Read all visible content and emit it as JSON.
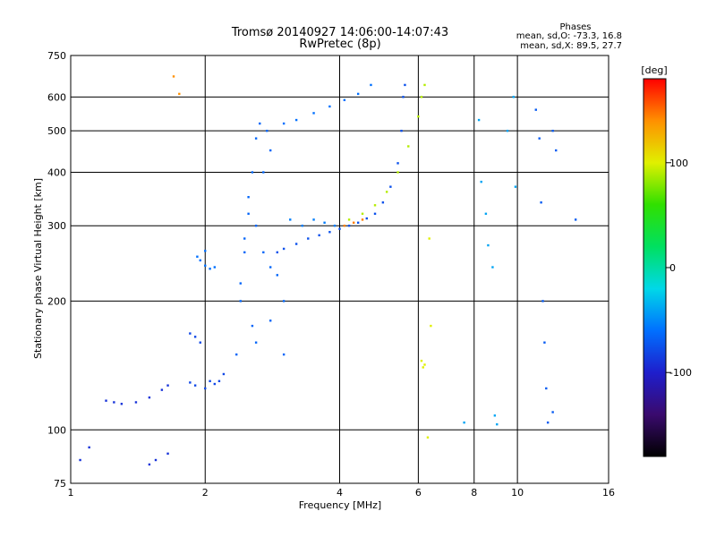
{
  "chart_data": {
    "type": "scatter",
    "title": "Tromsø 20140927 14:06:00-14:07:43",
    "subtitle": "RwPretec (8p)",
    "phases_box": {
      "heading": "Phases",
      "line1": "mean, sd,O: -73.3, 16.8",
      "line2": "mean, sd,X:  89.5, 27.7"
    },
    "xlabel": "Frequency [MHz]",
    "ylabel": "Stationary phase Virtual Height [km]",
    "x_scale": "log",
    "y_scale": "log",
    "xlim": [
      1,
      16
    ],
    "ylim": [
      75,
      750
    ],
    "x_ticks": [
      1,
      2,
      4,
      6,
      8,
      10,
      16
    ],
    "x_tick_labels": [
      "1",
      "2",
      "4",
      "6",
      "8",
      "10",
      "16"
    ],
    "y_ticks": [
      75,
      100,
      200,
      300,
      400,
      500,
      600,
      750
    ],
    "y_tick_labels": [
      "75",
      "100",
      "200",
      "300",
      "400",
      "500",
      "600",
      "750"
    ],
    "grid": true,
    "colorbar": {
      "label": "[deg]",
      "range": [
        -180,
        180
      ],
      "ticks": [
        100,
        0,
        -100
      ],
      "tick_labels": [
        "100",
        "0",
        "-100"
      ],
      "colors": [
        "#000000",
        "#3a0a6e",
        "#1e1ecc",
        "#0070ff",
        "#00d8e8",
        "#00e060",
        "#30e000",
        "#e0f000",
        "#ff9000",
        "#ff0000"
      ]
    },
    "series": [
      {
        "values": [
          [
            1.2,
            117
          ],
          [
            1.25,
            116
          ],
          [
            1.3,
            115
          ],
          [
            1.4,
            116
          ],
          [
            1.5,
            119
          ],
          [
            1.6,
            124
          ],
          [
            1.65,
            127
          ],
          [
            1.5,
            83
          ],
          [
            1.55,
            85
          ],
          [
            1.65,
            88
          ],
          [
            1.05,
            85
          ],
          [
            1.1,
            91
          ]
        ],
        "phase": -90
      },
      {
        "values": [
          [
            1.85,
            168
          ],
          [
            1.9,
            165
          ],
          [
            1.95,
            160
          ],
          [
            2.0,
            125
          ],
          [
            2.05,
            130
          ],
          [
            2.1,
            128
          ],
          [
            2.15,
            130
          ],
          [
            2.2,
            135
          ],
          [
            1.85,
            129
          ],
          [
            1.9,
            127
          ]
        ],
        "phase": -80
      },
      {
        "values": [
          [
            1.92,
            254
          ],
          [
            1.95,
            249
          ],
          [
            2.0,
            242
          ],
          [
            2.05,
            238
          ],
          [
            2.1,
            240
          ],
          [
            2.0,
            262
          ]
        ],
        "phase": -60
      },
      {
        "values": [
          [
            2.35,
            150
          ],
          [
            2.4,
            200
          ],
          [
            2.45,
            260
          ],
          [
            2.5,
            320
          ],
          [
            2.55,
            400
          ],
          [
            2.6,
            480
          ],
          [
            2.65,
            520
          ],
          [
            2.5,
            350
          ],
          [
            2.45,
            280
          ],
          [
            2.4,
            220
          ],
          [
            2.6,
            300
          ],
          [
            2.7,
            260
          ],
          [
            2.8,
            240
          ],
          [
            2.9,
            230
          ],
          [
            3.0,
            200
          ],
          [
            2.55,
            175
          ],
          [
            2.6,
            160
          ],
          [
            2.8,
            180
          ],
          [
            3.0,
            150
          ],
          [
            2.75,
            500
          ],
          [
            2.8,
            450
          ],
          [
            2.7,
            400
          ]
        ],
        "phase": -65
      },
      {
        "values": [
          [
            2.9,
            260
          ],
          [
            3.0,
            265
          ],
          [
            3.2,
            272
          ],
          [
            3.4,
            280
          ],
          [
            3.6,
            285
          ],
          [
            3.8,
            290
          ],
          [
            4.0,
            295
          ],
          [
            4.2,
            300
          ],
          [
            4.4,
            305
          ],
          [
            4.6,
            312
          ],
          [
            4.8,
            320
          ],
          [
            5.0,
            340
          ],
          [
            5.2,
            370
          ],
          [
            5.4,
            420
          ],
          [
            5.5,
            500
          ],
          [
            5.55,
            600
          ],
          [
            5.6,
            640
          ]
        ],
        "phase": -75
      },
      {
        "values": [
          [
            3.3,
            300
          ],
          [
            3.5,
            310
          ],
          [
            3.7,
            305
          ],
          [
            3.9,
            300
          ],
          [
            3.1,
            310
          ]
        ],
        "phase": -55
      },
      {
        "values": [
          [
            3.2,
            530
          ],
          [
            3.5,
            550
          ],
          [
            3.8,
            570
          ],
          [
            4.1,
            590
          ],
          [
            4.4,
            610
          ],
          [
            4.7,
            640
          ],
          [
            3.0,
            520
          ]
        ],
        "phase": -60
      },
      {
        "values": [
          [
            4.2,
            310
          ],
          [
            4.5,
            320
          ],
          [
            4.8,
            335
          ],
          [
            5.1,
            360
          ],
          [
            5.4,
            400
          ],
          [
            5.7,
            460
          ],
          [
            6.0,
            540
          ],
          [
            6.1,
            600
          ],
          [
            6.2,
            640
          ]
        ],
        "phase": 90
      },
      {
        "values": [
          [
            4.1,
            300
          ],
          [
            4.3,
            305
          ],
          [
            4.5,
            310
          ]
        ],
        "phase": 145
      },
      {
        "values": [
          [
            6.1,
            145
          ],
          [
            6.15,
            140
          ],
          [
            6.2,
            142
          ],
          [
            6.3,
            96
          ],
          [
            6.35,
            280
          ],
          [
            6.4,
            175
          ]
        ],
        "phase": 100
      },
      {
        "values": [
          [
            7.6,
            104
          ],
          [
            8.2,
            530
          ],
          [
            8.3,
            380
          ],
          [
            8.5,
            320
          ],
          [
            8.6,
            270
          ],
          [
            8.8,
            240
          ],
          [
            8.9,
            108
          ],
          [
            9.0,
            103
          ],
          [
            9.5,
            500
          ],
          [
            9.8,
            600
          ],
          [
            9.9,
            370
          ]
        ],
        "phase": -40
      },
      {
        "values": [
          [
            11.0,
            560
          ],
          [
            11.2,
            480
          ],
          [
            11.3,
            340
          ],
          [
            11.4,
            200
          ],
          [
            11.5,
            160
          ],
          [
            11.6,
            125
          ],
          [
            11.7,
            104
          ],
          [
            12.0,
            110
          ],
          [
            12.2,
            450
          ],
          [
            13.5,
            310
          ],
          [
            12.0,
            500
          ]
        ],
        "phase": -70
      },
      {
        "values": [
          [
            1.7,
            670
          ],
          [
            1.75,
            610
          ]
        ],
        "phase": 140
      }
    ]
  }
}
